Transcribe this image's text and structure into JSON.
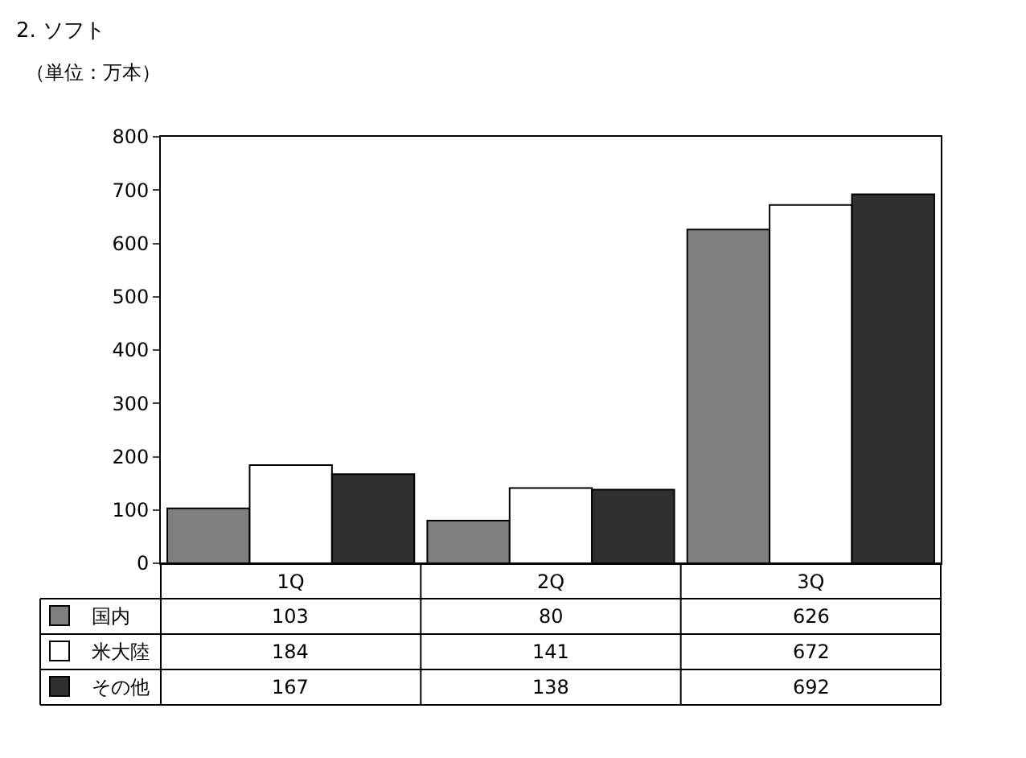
{
  "chart_data": {
    "type": "bar",
    "title": "2. ソフト",
    "subtitle": "（単位：万本）",
    "categories": [
      "1Q",
      "2Q",
      "3Q"
    ],
    "series": [
      {
        "name": "国内",
        "color": "#7f7f7f",
        "values": [
          103,
          80,
          626
        ]
      },
      {
        "name": "米大陸",
        "color": "#ffffff",
        "values": [
          184,
          141,
          672
        ]
      },
      {
        "name": "その他",
        "color": "#303030",
        "values": [
          167,
          138,
          692
        ]
      }
    ],
    "ylim": [
      0,
      800
    ],
    "yticks": [
      0,
      100,
      200,
      300,
      400,
      500,
      600,
      700,
      800
    ],
    "legend": "bottom left",
    "data_labels": true
  }
}
